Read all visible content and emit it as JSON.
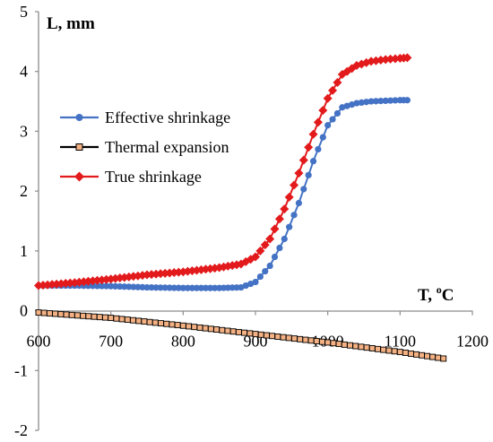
{
  "chart_data": {
    "type": "line",
    "ylabel": "L, mm",
    "xlabel_main": "T, ",
    "xlabel_sup": "o",
    "xlabel_unit": "C",
    "xlim": [
      600,
      1200
    ],
    "ylim": [
      -2,
      5
    ],
    "x_ticks": [
      "600",
      "700",
      "800",
      "900",
      "1000",
      "1100",
      "1200"
    ],
    "y_ticks": [
      "-2",
      "-1",
      "0",
      "1",
      "2",
      "3",
      "4",
      "5"
    ],
    "grid": false,
    "legend_position": "left",
    "series": [
      {
        "name": "Effective shrinkage",
        "color": "#4472C4",
        "marker": "circle",
        "x": [
          600,
          650,
          700,
          750,
          800,
          850,
          880,
          900,
          920,
          940,
          960,
          980,
          1000,
          1020,
          1040,
          1060,
          1080,
          1100,
          1110
        ],
        "y": [
          0.42,
          0.42,
          0.41,
          0.39,
          0.38,
          0.38,
          0.39,
          0.48,
          0.75,
          1.2,
          1.8,
          2.5,
          3.1,
          3.4,
          3.47,
          3.5,
          3.51,
          3.52,
          3.52
        ]
      },
      {
        "name": "Thermal expansion",
        "color": "#000000",
        "marker_fill": "#F4B183",
        "marker": "square",
        "x": [
          600,
          700,
          800,
          900,
          1000,
          1100,
          1160
        ],
        "y": [
          -0.03,
          -0.12,
          -0.25,
          -0.39,
          -0.53,
          -0.69,
          -0.8
        ]
      },
      {
        "name": "True shrinkage",
        "color": "#E31A1C",
        "marker": "diamond",
        "x": [
          600,
          650,
          700,
          750,
          800,
          850,
          880,
          900,
          920,
          940,
          960,
          980,
          1000,
          1020,
          1040,
          1060,
          1080,
          1100,
          1110
        ],
        "y": [
          0.42,
          0.47,
          0.53,
          0.6,
          0.65,
          0.72,
          0.78,
          0.9,
          1.2,
          1.7,
          2.3,
          2.95,
          3.55,
          3.95,
          4.1,
          4.17,
          4.2,
          4.22,
          4.23
        ]
      }
    ]
  }
}
